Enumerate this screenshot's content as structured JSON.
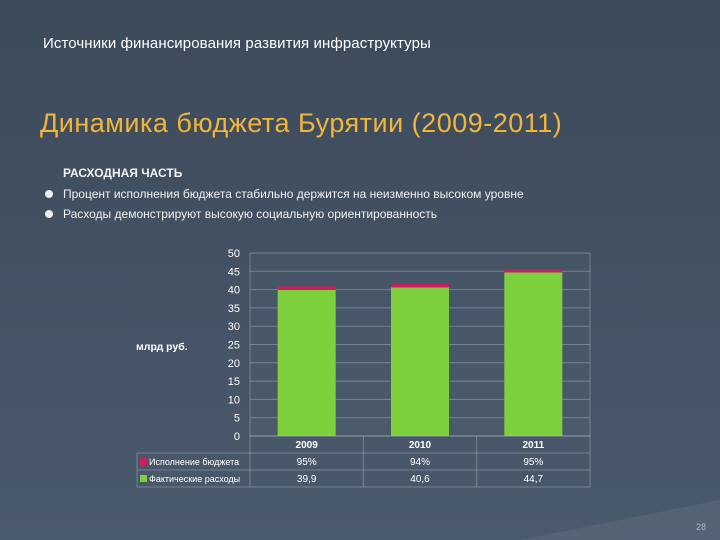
{
  "slide": {
    "top_title": "Источники финансирования развития инфраструктуры",
    "main_title": "Динамика бюджета Бурятии (2009-2011)",
    "section_head": "РАСХОДНАЯ ЧАСТЬ",
    "bullets": [
      "Процент исполнения бюджета стабильно держится на неизменно высоком уровне",
      "Расходы демонстрируют высокую социальную ориентированность"
    ],
    "page_number": "28"
  },
  "chart_data": {
    "type": "bar",
    "stacked": true,
    "categories": [
      "2009",
      "2010",
      "2011"
    ],
    "ylabel": "млрд руб.",
    "ylim": [
      0,
      50
    ],
    "yticks": [
      "0",
      "5",
      "10",
      "15",
      "20",
      "25",
      "30",
      "35",
      "40",
      "45",
      "50"
    ],
    "grid": true,
    "series": [
      {
        "name": "Фактические расходы",
        "color": "#7dcf3c",
        "values": [
          39.9,
          40.6,
          44.7
        ],
        "table_values": [
          "39,9",
          "40,6",
          "44,7"
        ]
      },
      {
        "name": "Исполнение бюджета",
        "color": "#c8205a",
        "values": [
          1.0,
          1.2,
          0.9
        ],
        "table_values": [
          "95%",
          "94%",
          "95%"
        ]
      }
    ]
  }
}
